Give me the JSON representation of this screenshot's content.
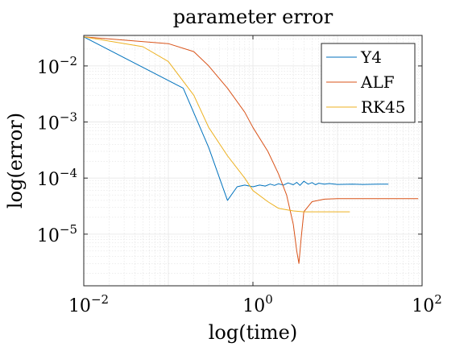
{
  "chart_data": {
    "type": "line",
    "title": "parameter error",
    "xlabel": "log(time)",
    "ylabel": "log(error)",
    "xscale": "log",
    "yscale": "log",
    "xlim": [
      0.01,
      100
    ],
    "ylim": [
      1.2e-06,
      0.035
    ],
    "grid": true,
    "legend_position": "top-right",
    "xticks": [
      {
        "value": 0.01,
        "base": "10",
        "exp": "−2"
      },
      {
        "value": 1,
        "base": "10",
        "exp": "0"
      },
      {
        "value": 100,
        "base": "10",
        "exp": "2"
      }
    ],
    "yticks": [
      {
        "value": 0.01,
        "base": "10",
        "exp": "−2"
      },
      {
        "value": 0.001,
        "base": "10",
        "exp": "−3"
      },
      {
        "value": 0.0001,
        "base": "10",
        "exp": "−4"
      },
      {
        "value": 1e-05,
        "base": "10",
        "exp": "−5"
      }
    ],
    "series": [
      {
        "name": "Y4",
        "color": "#0072BD",
        "x": [
          0.01,
          0.15,
          0.3,
          0.5,
          0.65,
          0.8,
          1.0,
          1.2,
          1.4,
          1.6,
          1.8,
          2.0,
          2.3,
          2.6,
          3.0,
          3.3,
          3.6,
          4.0,
          4.5,
          5.0,
          5.5,
          6.0,
          7.0,
          8.0,
          10,
          15,
          20,
          30,
          40
        ],
        "y": [
          0.033,
          0.004,
          0.00035,
          4e-05,
          7e-05,
          7.5e-05,
          7e-05,
          7.5e-05,
          7.2e-05,
          7.8e-05,
          7.4e-05,
          7.9e-05,
          7.5e-05,
          8.2e-05,
          7.6e-05,
          8.4e-05,
          7.4e-05,
          8.8e-05,
          7.8e-05,
          8.3e-05,
          7.6e-05,
          8.1e-05,
          7.8e-05,
          8e-05,
          7.7e-05,
          7.8e-05,
          7.7e-05,
          7.8e-05,
          7.8e-05
        ]
      },
      {
        "name": "ALF",
        "color": "#D95319",
        "x": [
          0.01,
          0.1,
          0.2,
          0.3,
          0.5,
          0.8,
          1.0,
          1.5,
          2.0,
          2.5,
          3.0,
          3.3,
          3.5,
          3.7,
          4.0,
          5.0,
          7.0,
          10,
          20,
          50,
          90
        ],
        "y": [
          0.033,
          0.025,
          0.018,
          0.01,
          0.004,
          0.0015,
          0.0008,
          0.0003,
          0.00012,
          5e-05,
          1.5e-05,
          5e-06,
          3e-06,
          8e-06,
          2.5e-05,
          3.8e-05,
          4.2e-05,
          4.3e-05,
          4.3e-05,
          4.3e-05,
          4.3e-05
        ]
      },
      {
        "name": "RK45",
        "color": "#EDB120",
        "x": [
          0.01,
          0.05,
          0.1,
          0.2,
          0.3,
          0.5,
          0.8,
          1.0,
          1.5,
          2.0,
          3.0,
          4.0,
          6.0,
          10,
          14
        ],
        "y": [
          0.033,
          0.022,
          0.012,
          0.003,
          0.0008,
          0.00025,
          0.0001,
          6e-05,
          3.8e-05,
          2.9e-05,
          2.6e-05,
          2.5e-05,
          2.5e-05,
          2.5e-05,
          2.5e-05
        ]
      }
    ]
  }
}
